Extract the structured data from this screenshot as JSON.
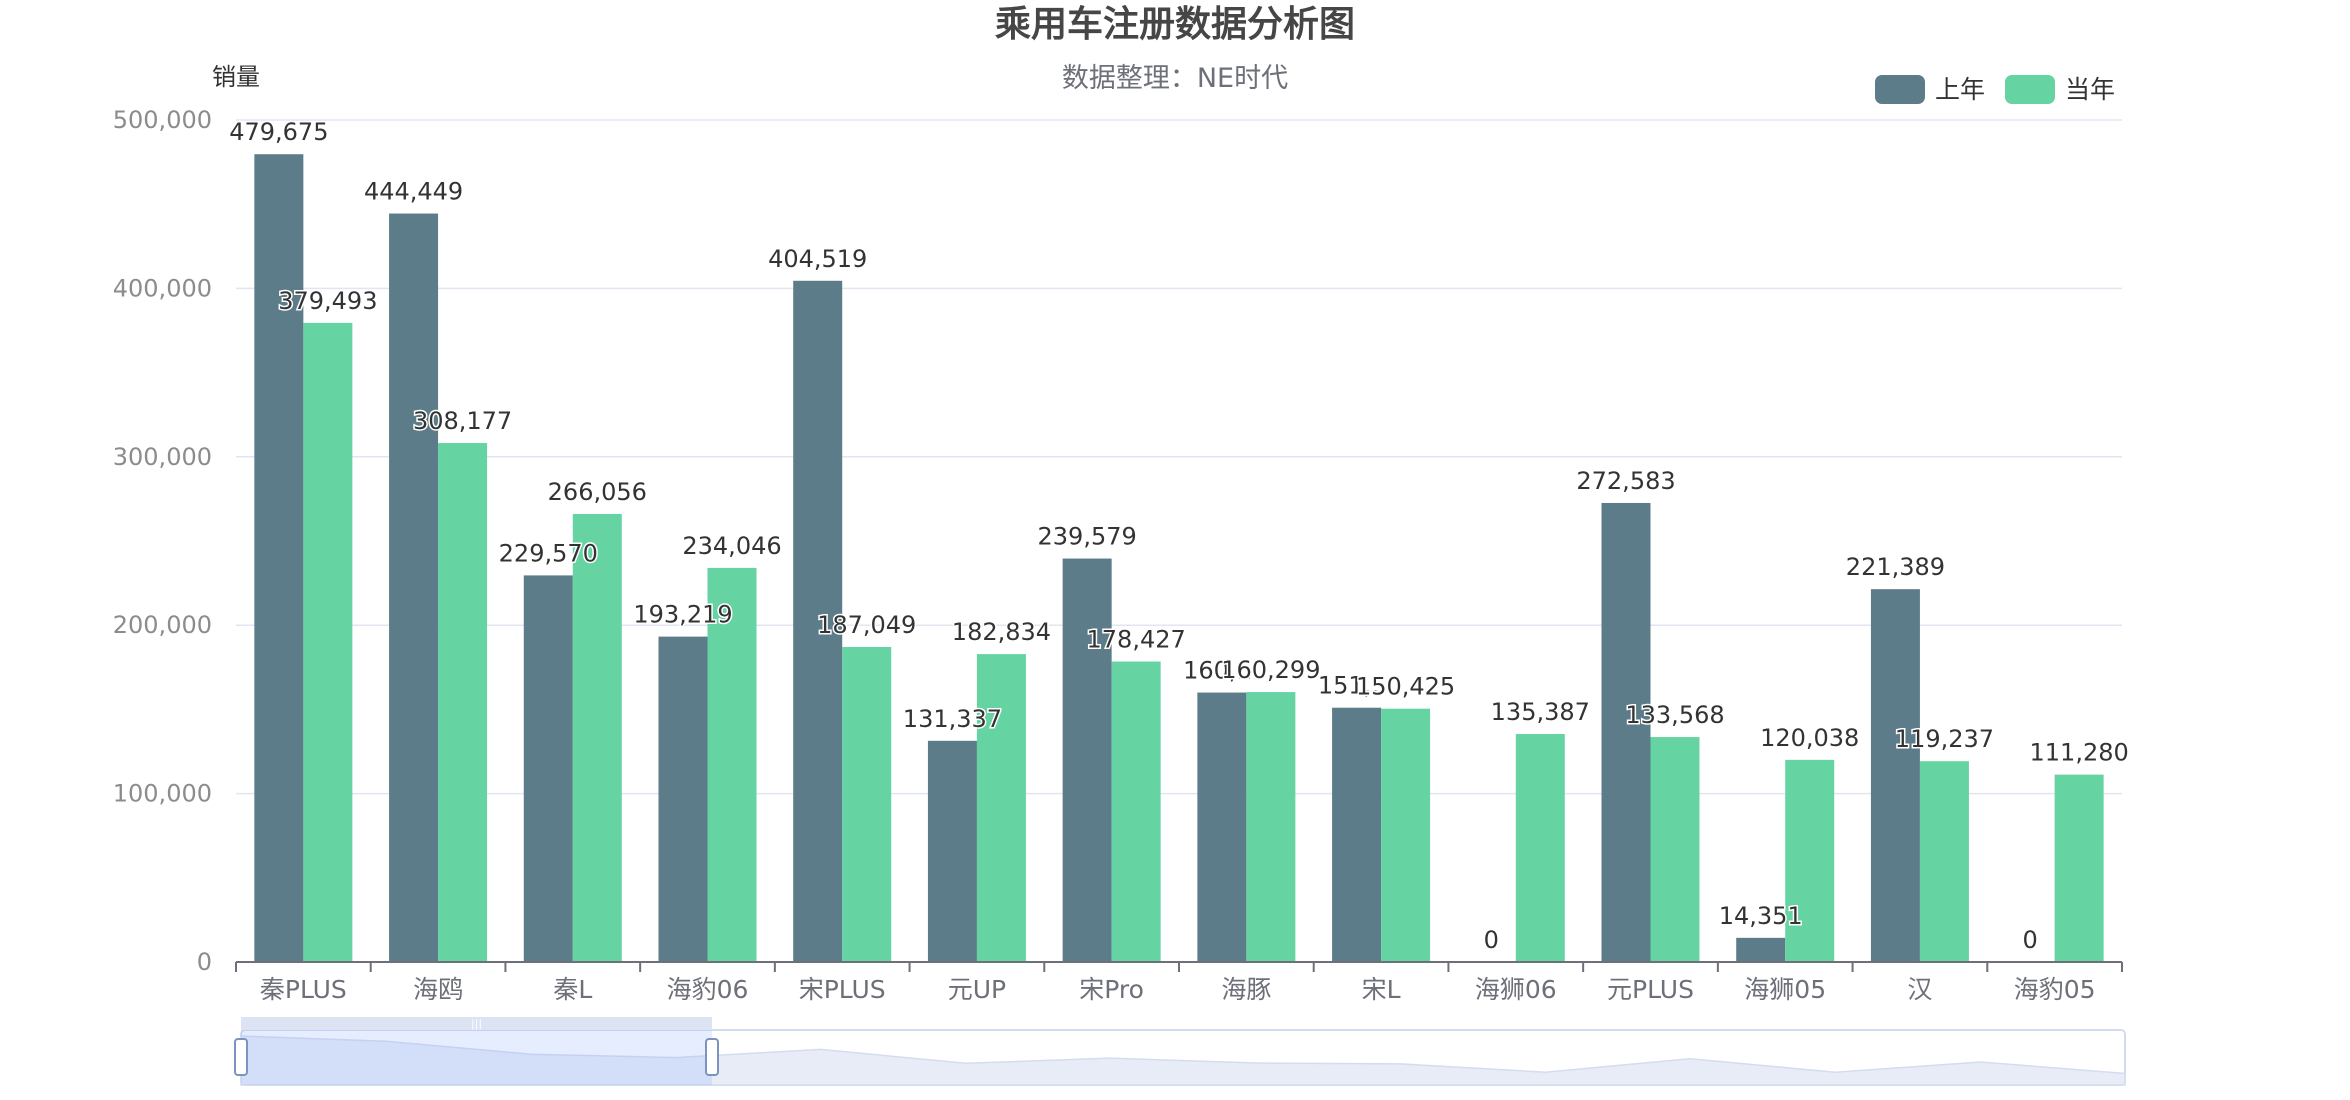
{
  "chart_data": {
    "type": "bar",
    "title": "乘用车注册数据分析图",
    "subtitle": "数据整理：NE时代",
    "ylabel": "销量",
    "xlabel": "",
    "ylim": [
      0,
      500000
    ],
    "yticks": [
      "0",
      "100,000",
      "200,000",
      "300,000",
      "400,000",
      "500,000"
    ],
    "grid": true,
    "legend_position": "top-right",
    "categories": [
      "秦PLUS",
      "海鸥",
      "秦L",
      "海豹06",
      "宋PLUS",
      "元UP",
      "宋Pro",
      "海豚",
      "宋L",
      "海狮06",
      "元PLUS",
      "海狮05",
      "汉",
      "海豹05"
    ],
    "series": [
      {
        "name": "上年",
        "color": "#5c7c89",
        "values": [
          479675,
          444449,
          229570,
          193219,
          404519,
          131337,
          239579,
          160000,
          151000,
          0,
          272583,
          14351,
          221389,
          0
        ],
        "labels": [
          "479,675",
          "444,449",
          "229,570",
          "193,219",
          "404,519",
          "131,337",
          "239,579",
          "160,…",
          "151,…",
          "0",
          "272,583",
          "14,351",
          "221,389",
          "0"
        ]
      },
      {
        "name": "当年",
        "color": "#65d3a2",
        "values": [
          379493,
          308177,
          266056,
          234046,
          187049,
          182834,
          178427,
          160299,
          150425,
          135387,
          133568,
          120038,
          119237,
          111280
        ],
        "labels": [
          "379,493",
          "308,177",
          "266,056",
          "234,046",
          "187,049",
          "182,834",
          "178,427",
          "160,299",
          "150,425",
          "135,387",
          "133,568",
          "120,038",
          "119,237",
          "111,280"
        ]
      }
    ],
    "datazoom": {
      "start_percent": 0,
      "end_percent": 25
    }
  }
}
